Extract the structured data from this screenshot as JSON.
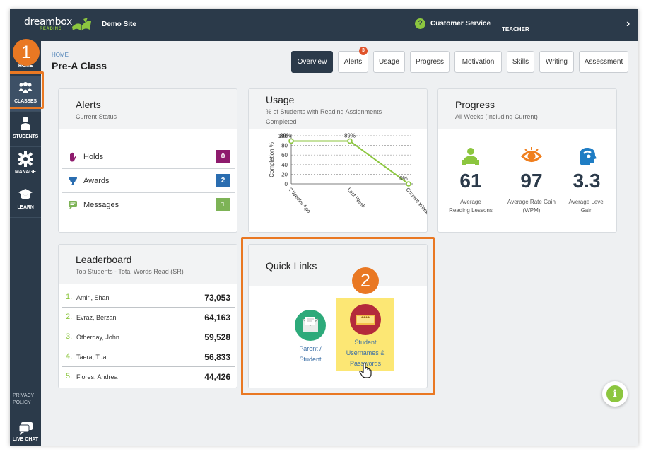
{
  "header": {
    "logo_word": "dreambox",
    "logo_sub": "READING",
    "site_name": "Demo Site",
    "help_icon": "?",
    "customer_service": "Customer Service",
    "role": "TEACHER",
    "chevron": "›"
  },
  "sidebar": {
    "items": [
      {
        "label": "HOME",
        "icon": "home-icon"
      },
      {
        "label": "CLASSES",
        "icon": "classes-icon"
      },
      {
        "label": "STUDENTS",
        "icon": "student-icon"
      },
      {
        "label": "MANAGE",
        "icon": "gear-icon"
      },
      {
        "label": "LEARN",
        "icon": "graduation-cap-icon"
      }
    ],
    "privacy_line1": "PRIVACY",
    "privacy_line2": "POLICY",
    "live_chat": "LIVE CHAT"
  },
  "callouts": {
    "step1": "1",
    "step2": "2",
    "accent": "#e97823"
  },
  "page": {
    "breadcrumb": "HOME",
    "title": "Pre-A Class",
    "tabs": [
      {
        "label": "Overview",
        "active": true
      },
      {
        "label": "Alerts",
        "badge": "3"
      },
      {
        "label": "Usage"
      },
      {
        "label": "Progress"
      },
      {
        "label": "Motivation"
      },
      {
        "label": "Skills"
      },
      {
        "label": "Writing"
      },
      {
        "label": "Assessment"
      }
    ]
  },
  "alerts": {
    "title": "Alerts",
    "subtitle": "Current Status",
    "rows": [
      {
        "label": "Holds",
        "count": "0",
        "color": "#8e1b6d",
        "icon": "hand-icon"
      },
      {
        "label": "Awards",
        "count": "2",
        "color": "#2a6db0",
        "icon": "trophy-icon"
      },
      {
        "label": "Messages",
        "count": "1",
        "color": "#7db356",
        "icon": "message-icon"
      }
    ]
  },
  "usage": {
    "title": "Usage",
    "subtitle_line1": "% of Students with Reading Assignments",
    "subtitle_line2": "Completed"
  },
  "chart_data": {
    "type": "line",
    "categories": [
      "2 Weeks Ago",
      "Last Week",
      "Current Week"
    ],
    "values": [
      89,
      89,
      0
    ],
    "data_labels": [
      "89%",
      "89%",
      "0%"
    ],
    "ylabel": "Completion %",
    "ylim": [
      0,
      100
    ],
    "yticks": [
      0,
      20,
      40,
      60,
      80,
      100
    ],
    "grid": true,
    "color": "#8cc63f"
  },
  "progress": {
    "title": "Progress",
    "subtitle": "All Weeks (Including Current)",
    "metrics": [
      {
        "value": "61",
        "caption_line1": "Average",
        "caption_line2": "Reading Lessons",
        "icon": "lessons-icon"
      },
      {
        "value": "97",
        "caption_line1": "Average Rate Gain",
        "caption_line2": "(WPM)",
        "icon": "eye-icon"
      },
      {
        "value": "3.3",
        "caption_line1": "Average Level",
        "caption_line2": "Gain",
        "icon": "head-icon"
      }
    ]
  },
  "leaderboard": {
    "title": "Leaderboard",
    "subtitle": "Top Students - Total Words Read (SR)",
    "rows": [
      {
        "rank": "1.",
        "name": "Amiri, Shani",
        "value": "73,053"
      },
      {
        "rank": "2.",
        "name": "Evraz, Berzan",
        "value": "64,163"
      },
      {
        "rank": "3.",
        "name": "Otherday, John",
        "value": "59,528"
      },
      {
        "rank": "4.",
        "name": "Taera, Tua",
        "value": "56,833"
      },
      {
        "rank": "5.",
        "name": "Flores, Andrea",
        "value": "44,426"
      }
    ]
  },
  "quick_links": {
    "title": "Quick Links",
    "parent_line1": "Parent /",
    "parent_line2": "Student",
    "usernames_line1": "Student",
    "usernames_line2": "Usernames &",
    "usernames_line3": "Passwords",
    "password_mask": "****"
  },
  "info_button": "i"
}
